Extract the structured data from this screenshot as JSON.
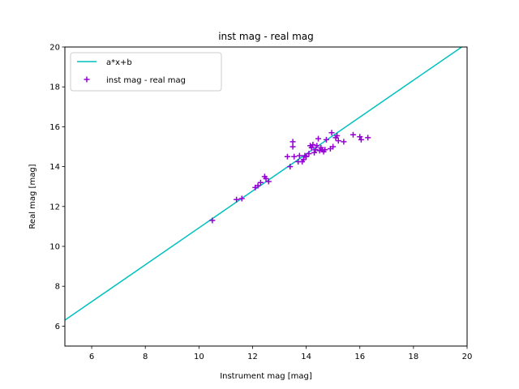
{
  "chart_data": {
    "type": "scatter",
    "title": "inst mag - real mag",
    "xlabel": "Instrument mag [mag]",
    "ylabel": "Real mag [mag]",
    "xlim": [
      5,
      20
    ],
    "ylim": [
      5,
      20
    ],
    "xticks": [
      6,
      8,
      10,
      12,
      14,
      16,
      18,
      20
    ],
    "yticks": [
      6,
      8,
      10,
      12,
      14,
      16,
      18,
      20
    ],
    "grid": false,
    "legend_position": "top-left",
    "series": [
      {
        "name": "a*x+b",
        "kind": "line",
        "color": "#00bfbf",
        "x": [
          5,
          19.8
        ],
        "y": [
          6.3,
          20.0
        ]
      },
      {
        "name": "inst mag - real mag",
        "kind": "scatter",
        "marker": "plus",
        "color": "#9400d3",
        "x": [
          10.5,
          11.4,
          11.6,
          12.1,
          12.2,
          12.3,
          12.45,
          12.5,
          12.6,
          13.3,
          13.4,
          13.5,
          13.5,
          13.55,
          13.7,
          13.75,
          13.85,
          13.9,
          13.95,
          14.0,
          14.1,
          14.15,
          14.2,
          14.25,
          14.3,
          14.35,
          14.4,
          14.45,
          14.5,
          14.55,
          14.6,
          14.65,
          14.7,
          14.75,
          14.9,
          14.95,
          15.0,
          15.1,
          15.15,
          15.2,
          15.4,
          15.75,
          16.0,
          16.05,
          16.3
        ],
        "y": [
          11.3,
          12.35,
          12.4,
          12.95,
          13.05,
          13.2,
          13.5,
          13.4,
          13.25,
          14.5,
          14.0,
          15.25,
          15.0,
          14.5,
          14.25,
          14.55,
          14.25,
          14.35,
          14.55,
          14.5,
          14.65,
          15.05,
          14.95,
          15.1,
          14.7,
          14.85,
          15.05,
          15.4,
          14.8,
          14.95,
          14.85,
          14.75,
          14.85,
          15.35,
          14.9,
          15.7,
          15.0,
          15.45,
          15.55,
          15.3,
          15.25,
          15.6,
          15.5,
          15.35,
          15.45
        ]
      }
    ]
  }
}
